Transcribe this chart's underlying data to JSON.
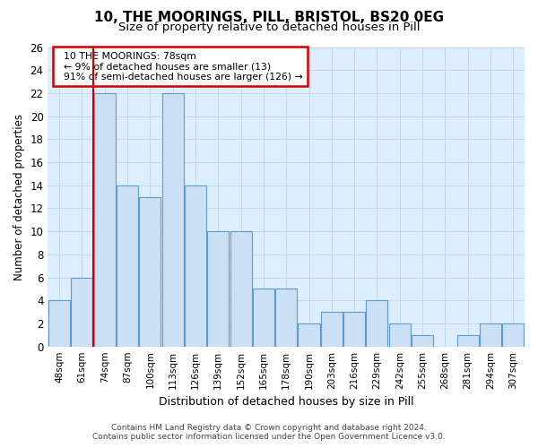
{
  "title": "10, THE MOORINGS, PILL, BRISTOL, BS20 0EG",
  "subtitle": "Size of property relative to detached houses in Pill",
  "xlabel": "Distribution of detached houses by size in Pill",
  "ylabel": "Number of detached properties",
  "footer1": "Contains HM Land Registry data © Crown copyright and database right 2024.",
  "footer2": "Contains public sector information licensed under the Open Government Licence v3.0.",
  "annotation_line1": "10 THE MOORINGS: 78sqm",
  "annotation_line2": "← 9% of detached houses are smaller (13)",
  "annotation_line3": "91% of semi-detached houses are larger (126) →",
  "categories": [
    "48sqm",
    "61sqm",
    "74sqm",
    "87sqm",
    "100sqm",
    "113sqm",
    "126sqm",
    "139sqm",
    "152sqm",
    "165sqm",
    "178sqm",
    "190sqm",
    "203sqm",
    "216sqm",
    "229sqm",
    "242sqm",
    "255sqm",
    "268sqm",
    "281sqm",
    "294sqm",
    "307sqm"
  ],
  "values": [
    4,
    6,
    22,
    14,
    13,
    22,
    14,
    10,
    10,
    5,
    5,
    2,
    3,
    3,
    4,
    2,
    1,
    0,
    1,
    2,
    2
  ],
  "bar_color": "#cce0f5",
  "bar_edge_color": "#5b9bd5",
  "ref_line_color": "#cc0000",
  "ylim": [
    0,
    26
  ],
  "yticks": [
    0,
    2,
    4,
    6,
    8,
    10,
    12,
    14,
    16,
    18,
    20,
    22,
    24,
    26
  ],
  "bg_color": "#ffffff",
  "axes_bg_color": "#ddeeff",
  "grid_color": "#c0d4e8",
  "annotation_box_color": "#cc0000",
  "title_fontsize": 11,
  "subtitle_fontsize": 9.5
}
